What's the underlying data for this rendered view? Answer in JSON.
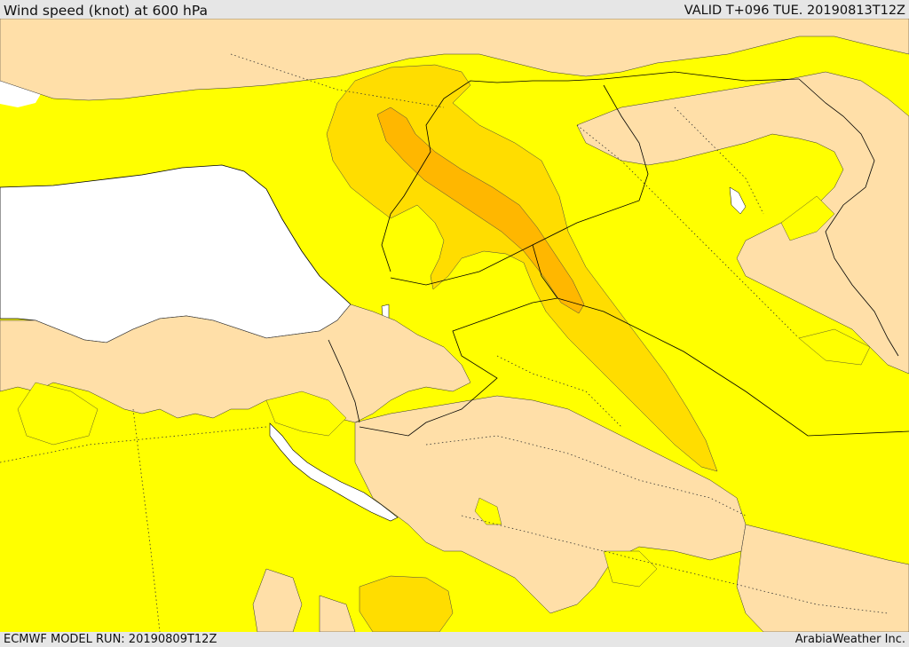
{
  "header": {
    "title": "Wind speed (knot) at 600 hPa",
    "valid_time": "VALID T+096 TUE. 20190813T12Z"
  },
  "footer": {
    "model_run": "ECMWF MODEL RUN: 20190809T12Z",
    "credit": "ArabiaWeather Inc."
  },
  "map": {
    "colors": {
      "sea": "#ffffff",
      "wind_lowest": "#ffdfa8",
      "wind_low": "#ffff00",
      "wind_mid": "#ffdd00",
      "wind_high": "#ffb700",
      "boundary": "#000000"
    }
  }
}
